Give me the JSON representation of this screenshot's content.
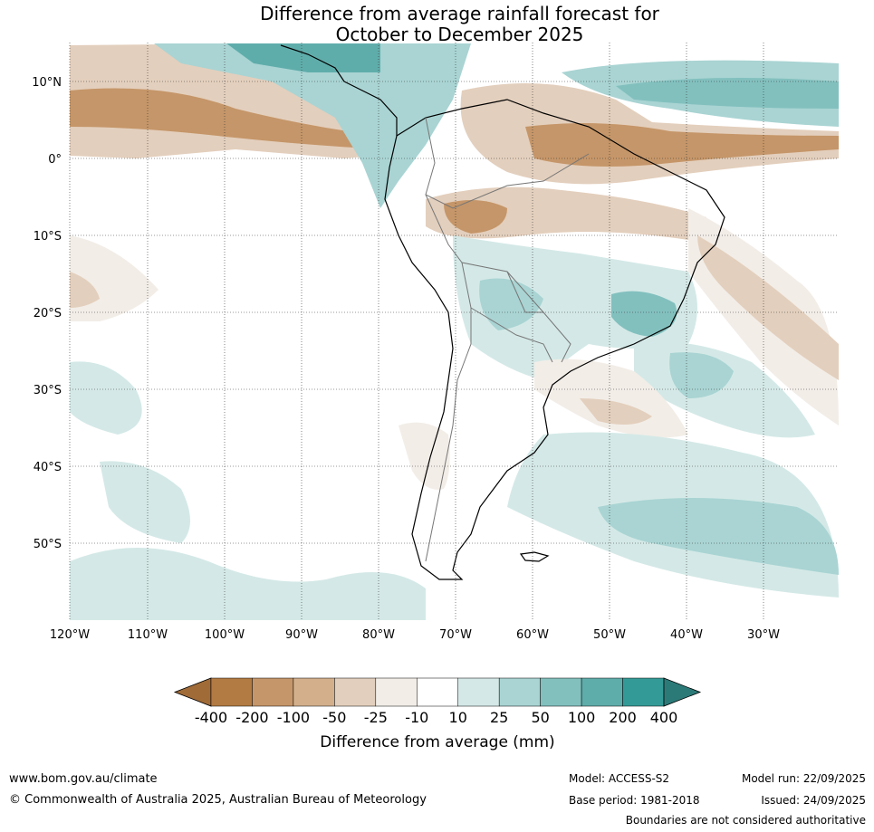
{
  "title": {
    "line1": "Difference from average rainfall forecast for",
    "line2": "October to December 2025"
  },
  "map": {
    "lat_labels": [
      "10°N",
      "0°",
      "10°S",
      "20°S",
      "30°S",
      "40°S",
      "50°S"
    ],
    "lon_labels": [
      "120°W",
      "110°W",
      "100°W",
      "90°W",
      "80°W",
      "70°W",
      "60°W",
      "50°W",
      "40°W",
      "30°W"
    ]
  },
  "legend": {
    "title": "Difference from average (mm)",
    "tick_labels": [
      "-400",
      "-200",
      "-100",
      "-50",
      "-25",
      "-10",
      "10",
      "25",
      "50",
      "100",
      "200",
      "400"
    ],
    "colors": [
      "#a06b37",
      "#b27b43",
      "#c59669",
      "#d3af8c",
      "#e3cfbd",
      "#f2ede7",
      "#ffffff",
      "#d4e9e7",
      "#a9d4d3",
      "#82c0be",
      "#5fadab",
      "#349a97",
      "#2c7a78"
    ]
  },
  "footer": {
    "website": "www.bom.gov.au/climate",
    "copyright": "© Commonwealth of Australia 2025, Australian Bureau of Meteorology",
    "model": "Model: ACCESS-S2",
    "base_period": "Base period: 1981-2018",
    "model_run": "Model run: 22/09/2025",
    "issued": "Issued: 24/09/2025",
    "disclaimer": "Boundaries are not considered authoritative"
  }
}
